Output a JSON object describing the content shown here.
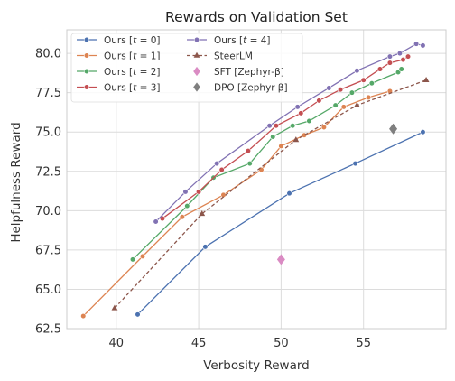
{
  "chart_data": {
    "type": "line",
    "title": "Rewards on Validation Set",
    "xlabel": "Verbosity Reward",
    "ylabel": "Helpfulness Reward",
    "xlim": [
      37,
      60
    ],
    "ylim": [
      62.5,
      81.5
    ],
    "xticks": [
      40,
      45,
      50,
      55
    ],
    "yticks": [
      62.5,
      65.0,
      67.5,
      70.0,
      72.5,
      75.0,
      77.5,
      80.0
    ],
    "grid": true,
    "legend_position": "top-left",
    "series": [
      {
        "name": "Ours [t=0]",
        "label_main": "Ours [",
        "label_italic": "t",
        "label_rest": " = 0]",
        "color": "#4c72b0",
        "marker": "circle",
        "linestyle": "solid",
        "x": [
          41.3,
          45.4,
          50.5,
          54.5,
          58.6
        ],
        "y": [
          63.4,
          67.7,
          71.1,
          73.0,
          75.0
        ]
      },
      {
        "name": "Ours [t=1]",
        "label_main": "Ours [",
        "label_italic": "t",
        "label_rest": " = 1]",
        "color": "#dd8452",
        "marker": "circle",
        "linestyle": "solid",
        "x": [
          38.0,
          41.6,
          44.0,
          46.5,
          48.8,
          50.0,
          51.4,
          52.6,
          53.8,
          55.3,
          56.6
        ],
        "y": [
          63.3,
          67.1,
          69.6,
          71.0,
          72.6,
          74.1,
          74.8,
          75.3,
          76.6,
          77.2,
          77.6
        ]
      },
      {
        "name": "Ours [t=2]",
        "label_main": "Ours [",
        "label_italic": "t",
        "label_rest": " = 2]",
        "color": "#55a868",
        "marker": "circle",
        "linestyle": "solid",
        "x": [
          41.0,
          44.3,
          45.9,
          48.1,
          49.5,
          50.7,
          51.7,
          53.3,
          54.3,
          55.5,
          57.1,
          57.3
        ],
        "y": [
          66.9,
          70.3,
          72.1,
          73.0,
          74.7,
          75.4,
          75.7,
          76.7,
          77.5,
          78.1,
          78.8,
          79.0
        ]
      },
      {
        "name": "Ours [t=3]",
        "label_main": "Ours [",
        "label_italic": "t",
        "label_rest": " = 3]",
        "color": "#c44e52",
        "marker": "circle",
        "linestyle": "solid",
        "x": [
          42.8,
          45.0,
          46.4,
          48.0,
          49.7,
          51.2,
          52.3,
          53.6,
          55.0,
          56.0,
          56.6,
          57.4,
          57.7
        ],
        "y": [
          69.5,
          71.2,
          72.6,
          73.8,
          75.4,
          76.2,
          77.0,
          77.7,
          78.3,
          79.0,
          79.4,
          79.6,
          79.8
        ]
      },
      {
        "name": "Ours [t=4]",
        "label_main": "Ours [",
        "label_italic": "t",
        "label_rest": " = 4]",
        "color": "#8172b3",
        "marker": "circle",
        "linestyle": "solid",
        "x": [
          42.4,
          44.2,
          46.1,
          49.3,
          51.0,
          52.9,
          54.6,
          56.6,
          57.2,
          58.2,
          58.6
        ],
        "y": [
          69.3,
          71.2,
          73.0,
          75.4,
          76.6,
          77.8,
          78.9,
          79.8,
          80.0,
          80.6,
          80.5
        ]
      },
      {
        "name": "SteerLM",
        "label_main": "SteerLM",
        "label_italic": "",
        "label_rest": "",
        "color": "#8c564b",
        "marker": "triangle",
        "linestyle": "dashed",
        "x": [
          39.9,
          45.2,
          50.9,
          54.6,
          58.8
        ],
        "y": [
          63.8,
          69.8,
          74.5,
          76.7,
          78.3
        ]
      },
      {
        "name": "SFT [Zephyr-β]",
        "label_main": "SFT [Zephyr-β]",
        "label_italic": "",
        "label_rest": "",
        "color": "#da8bc3",
        "marker": "diamond",
        "linestyle": "none",
        "x": [
          50.0
        ],
        "y": [
          66.9
        ]
      },
      {
        "name": "DPO [Zephyr-β]",
        "label_main": "DPO [Zephyr-β]",
        "label_italic": "",
        "label_rest": "",
        "color": "#7f7f7f",
        "marker": "diamond",
        "linestyle": "none",
        "x": [
          56.8
        ],
        "y": [
          75.2
        ]
      }
    ]
  }
}
